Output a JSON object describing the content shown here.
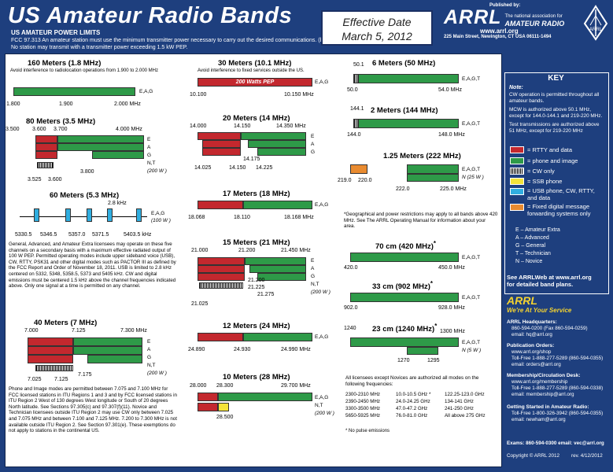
{
  "header": {
    "title": "US Amateur Radio Bands",
    "subtitle": "US AMATEUR POWER LIMITS",
    "fcc": "FCC 97.313   An amateur station must use the minimum transmitter power necessary to carry out the desired communications.   (b) No station may transmit with a transmitter power exceeding 1.5 kW PEP.",
    "effective_line1": "Effective Date",
    "effective_line2": "March 5, 2012",
    "published_by": "Published by:",
    "arrl_brand": "ARRL",
    "arrl_tag1": "The national association for",
    "arrl_tag2": "AMATEUR RADIO",
    "arrl_url": "www.arrl.org",
    "arrl_address": "225 Main Street, Newington, CT  USA  06111-1494",
    "diamond": "ARRL"
  },
  "bands": {
    "m160": {
      "title": "160 Meters (1.8 MHz)",
      "note": "Avoid interference to radiolocation operations from 1.900 to 2.000 MHz",
      "ticks": [
        "1.800",
        "1.900",
        "2.000 MHz"
      ],
      "modes": "E,A,G"
    },
    "m80": {
      "title": "80 Meters (3.5 MHz)",
      "ticks_top": [
        "3.500",
        "3.600",
        "3.700",
        "4.000 MHz"
      ],
      "ticks_bot": [
        "3.525",
        "3.800",
        "3.600"
      ],
      "modes": [
        "E",
        "A",
        "G",
        "N,T",
        "(200 W )"
      ]
    },
    "m60": {
      "title": "60 Meters (5.3 MHz)",
      "width": "2.8 kHz",
      "modes": "E,A,G",
      "power": "(100 W )",
      "ticks": [
        "5330.5",
        "5346.5",
        "5357.0",
        "5371.5",
        "5403.5 kHz"
      ],
      "text": "General, Advanced, and Amateur Extra licensees may operate on these five channels on a secondary basis with a maximum effective radiated output of 100 W PEP. Permitted operating modes include upper sideband voice (USB), CW, RTTY, PSK31 and other digital modes such as PACTOR III as defined by the FCC Report and Order of November 18, 2011. USB is limited to 2.8 kHz centered on 5332, 5348, 5358.5, 5373 and 5405 kHz. CW and digital emissions must be centered 1.5 kHz above the channel frequencies indicated above. Only one signal at a time is permitted on any channel."
    },
    "m40": {
      "title": "40 Meters (7 MHz)",
      "ticks_top": [
        "7.000",
        "7.125",
        "7.300 MHz"
      ],
      "ticks_bot": [
        "7.025",
        "7.125",
        "7.175"
      ],
      "modes": [
        "E",
        "A",
        "G",
        "N,T",
        "(200 W )"
      ],
      "text": "Phone and Image modes are permitted between 7.075 and 7.100 MHz for FCC licensed stations in ITU Regions 1 and 3 and by FCC licensed stations in ITU Region 2 West of 130 degrees West longitude or South of 20 degrees North latitude. See Sections 97.305(c) and 97.307(f)(11). Novice and Technician  licensees outside ITU Region 2 may use CW only between 7.025 and 7.075 MHz and between 7.100 and 7.125 MHz. 7.200 to 7.300 MHz is not available outside ITU Region 2. See Section 97.301(e). These exemptions do not apply to stations in the continental US."
    },
    "m30": {
      "title": "30 Meters (10.1 MHz)",
      "note": "Avoid interference to fixed services outside the US.",
      "pep": "200 Watts PEP",
      "ticks": [
        "10.100",
        "10.150 MHz"
      ],
      "modes": "E,A,G"
    },
    "m20": {
      "title": "20 Meters (14 MHz)",
      "ticks_top": [
        "14.000",
        "14.150",
        "14.350 MHz"
      ],
      "ticks_bot": [
        "14.025",
        "14.175",
        "14.150",
        "14.225"
      ],
      "modes": [
        "E",
        "A",
        "G"
      ]
    },
    "m17": {
      "title": "17 Meters (18 MHz)",
      "ticks": [
        "18.068",
        "18.110",
        "18.168 MHz"
      ],
      "modes": "E,A,G"
    },
    "m15": {
      "title": "15 Meters (21 MHz)",
      "ticks_top": [
        "21.000",
        "21.200",
        "21.450 MHz"
      ],
      "ticks_bot": [
        "21.025",
        "21.200",
        "21.225",
        "21.275"
      ],
      "modes": [
        "E",
        "A",
        "G",
        "N,T",
        "(200 W )"
      ]
    },
    "m12": {
      "title": "12 Meters (24 MHz)",
      "ticks": [
        "24.890",
        "24.930",
        "24.990 MHz"
      ],
      "modes": "E,A,G"
    },
    "m10": {
      "title": "10 Meters (28 MHz)",
      "ticks_top": [
        "28.000",
        "28.300",
        "29.700 MHz"
      ],
      "ticks_bot": [
        "28.500"
      ],
      "modes": [
        "E,A,G",
        "N,T",
        "(200 W )"
      ]
    },
    "m6": {
      "title": "6 Meters (50 MHz)",
      "ticks": [
        "50.1",
        "50.0",
        "54.0 MHz"
      ],
      "modes": "E,A,G,T"
    },
    "m2": {
      "title": "2 Meters (144 MHz)",
      "ticks": [
        "144.1",
        "144.0",
        "148.0 MHz"
      ],
      "modes": "E,A,G,T"
    },
    "m125": {
      "title": "1.25 Meters (222 MHz)",
      "ticks": [
        "219.0",
        "220.0",
        "222.0",
        "225.0 MHz"
      ],
      "modes": [
        "E,A,G,T",
        "N (25 W )"
      ]
    },
    "geo_note": "*Geographical and power restrictions may apply to all bands above 420 MHz. See The ARRL Operating Manual for information about your area.",
    "cm70": {
      "title": "70 cm (420 MHz)",
      "star": "*",
      "ticks": [
        "420.0",
        "450.0 MHz"
      ],
      "modes": "E,A,G,T"
    },
    "cm33": {
      "title": "33 cm (902 MHz)",
      "star": "*",
      "ticks": [
        "902.0",
        "928.0 MHz"
      ],
      "modes": "E,A,G,T"
    },
    "cm23": {
      "title": "23 cm (1240 MHz)",
      "star": "*",
      "ticks": [
        "1240",
        "1300 MHz",
        "1270",
        "1295"
      ],
      "modes": [
        "E,A,G,T",
        "N (5 W )"
      ]
    },
    "upper_title": "All licensees except Novices are authorized all modes on the following frequencies:",
    "upper_rows": [
      [
        "2300-2310 MHz",
        "10.0-10.5 GHz *",
        "122.25-123.0 GHz"
      ],
      [
        "2390-2450 MHz",
        "24.0-24.25 GHz",
        "134-141 GHz"
      ],
      [
        "3300-3500 MHz",
        "47.0-47.2 GHz",
        "241-250 GHz"
      ],
      [
        "5650-5925 MHz",
        "76.0-81.0 GHz",
        "All above 275 GHz"
      ]
    ],
    "no_pulse": "* No pulse emissions"
  },
  "key": {
    "title": "KEY",
    "note_head": "Note:",
    "note1": "CW operation is permitted throughout all amateur bands.",
    "note2": "MCW is authorized above 50.1 MHz, except for 144.0-144.1 and 219-220 MHz.",
    "note3": "Test transmissions are authorized above 51 MHz, except for 219-220 MHz",
    "legend": [
      "= RTTY and data",
      "= phone and image",
      "= CW only",
      "= SSB phone",
      "= USB phone, CW, RTTY, and data",
      "= Fixed digital message forwarding systems only"
    ],
    "classes": [
      "E  – Amateur Extra",
      "A  – Advanced",
      "G  – General",
      "T  – Technician",
      "N  – Novice"
    ],
    "see1": "See ARRLWeb at www.arrl.org",
    "see2": "for detailed band plans."
  },
  "service": {
    "title": "ARRL",
    "subtitle": "We're At Your Service",
    "hq_head": "ARRL Headquarters:",
    "hq1": "860-594-0200  (Fax 860-594-0259)",
    "hq2": "email:  hq@arrl.org",
    "po_head": "Publication Orders:",
    "po1": "www.arrl.org/shop",
    "po2": "Toll-Free 1-888-277-5289 (860-594-0355)",
    "po3": "email: orders@arrl.org",
    "mem_head": "Membership/Circulation Desk:",
    "mem1": "www.arrl.org/membership",
    "mem2": "Toll-Free 1-888-277-5289 (860-594-0338)",
    "mem3": "email: membership@arrl.org",
    "gs_head": "Getting Started in Amateur Radio:",
    "gs1": "Toll-Free 1-800-326-3942 (860-594-0355)",
    "gs2": "email: newham@arrl.org",
    "exams": "Exams:  860-594-0300     email: vec@arrl.org",
    "copyright": "Copyright © ARRL 2012",
    "rev": "rev. 4/12/2012"
  },
  "colors": {
    "bg": "#1e3f7e",
    "rtty": "#c3282e",
    "phone": "#2e9a48",
    "ssb": "#f3e33a",
    "usb": "#30aee0",
    "fixed": "#e98b30"
  }
}
